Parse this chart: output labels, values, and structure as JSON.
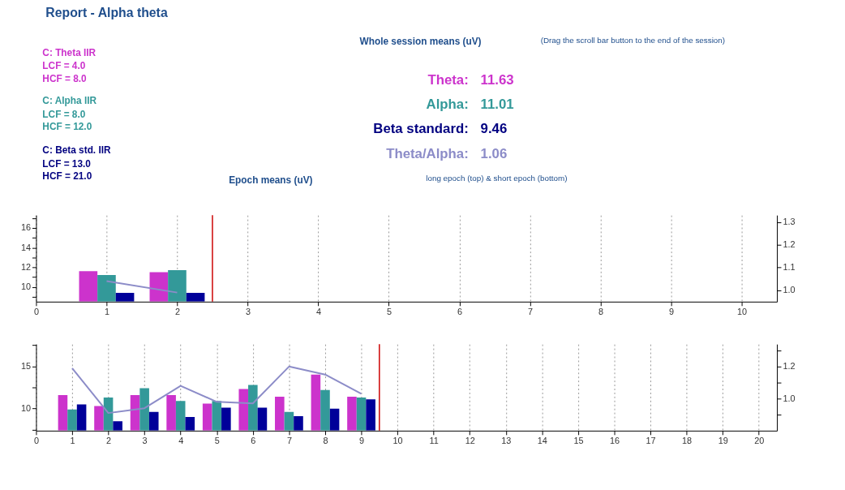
{
  "chart_data": [
    {
      "type": "other",
      "title": "Report - Alpha theta",
      "subtitle": "Whole session means (uV)",
      "annotations": [
        "C: Theta IIR",
        "LCF = 4.0",
        "HCF = 8.0",
        "C: Alpha IIR",
        "LCF = 8.0",
        "HCF = 12.0",
        "C: Beta std. IIR",
        "LCF = 13.0",
        "HCF = 21.0",
        "(Drag the scroll bar button to the end of the session)",
        "Theta:",
        "11.63",
        "Alpha:",
        "11.01",
        "Beta standard:",
        "9.46",
        "Theta/Alpha:",
        "1.06",
        "Epoch means (uV)",
        "long epoch (top) & short epoch (bottom)"
      ]
    },
    {
      "type": "bar",
      "x": [
        1,
        2
      ],
      "xlim": [
        0,
        10.5
      ],
      "xticks": [
        0,
        1,
        2,
        3,
        4,
        5,
        6,
        7,
        8,
        9,
        10
      ],
      "ylim": [
        8.5,
        17.3
      ],
      "yticks": [
        {
          "value": 9,
          "label": null
        },
        10,
        {
          "value": 11,
          "label": null
        },
        12,
        {
          "value": 13,
          "label": null
        },
        14,
        {
          "value": 15,
          "label": null
        },
        16,
        {
          "value": 17,
          "label": null
        }
      ],
      "y2lim": [
        0.95,
        1.33
      ],
      "y2ticks": [
        {
          "value": 1.0,
          "label": "1.0"
        },
        1.1,
        1.2,
        1.3
      ],
      "grid": "x",
      "series": [
        {
          "color": "#cc33cc",
          "values": [
            11.6,
            11.5
          ]
        },
        {
          "color": "#339999",
          "values": [
            11.2,
            11.7
          ]
        },
        {
          "color": "#000099",
          "values": [
            9.4,
            9.4
          ]
        },
        {
          "type": "line",
          "axis": "y2",
          "color": "#8c8cc8",
          "values": [
            1.04,
            0.99
          ]
        }
      ],
      "ref_lines": [
        {
          "axis": "x",
          "value": 2.5,
          "color": "#cc0000"
        }
      ]
    },
    {
      "type": "bar",
      "x": [
        1,
        2,
        3,
        4,
        5,
        6,
        7,
        8,
        9
      ],
      "xlim": [
        0,
        20.5
      ],
      "xticks": [
        0,
        1,
        2,
        3,
        4,
        5,
        6,
        7,
        8,
        9,
        10,
        11,
        12,
        13,
        14,
        15,
        16,
        17,
        18,
        19,
        20
      ],
      "ylim": [
        7.4,
        17.6
      ],
      "yticks": [
        {
          "value": 7.5,
          "label": null
        },
        10,
        {
          "value": 12.5,
          "label": null
        },
        15,
        {
          "value": 17.5,
          "label": null
        }
      ],
      "y2lim": [
        0.8,
        1.34
      ],
      "y2ticks": [
        {
          "value": 0.9,
          "label": null
        },
        {
          "value": 1.0,
          "label": "1.0"
        },
        {
          "value": 1.1,
          "label": null
        },
        1.2,
        {
          "value": 1.3,
          "label": null
        }
      ],
      "grid": "x",
      "series": [
        {
          "color": "#cc33cc",
          "values": [
            11.6,
            10.3,
            11.6,
            11.6,
            10.6,
            12.3,
            11.4,
            14.0,
            11.4
          ]
        },
        {
          "color": "#339999",
          "values": [
            9.9,
            11.3,
            12.4,
            10.9,
            10.9,
            12.8,
            9.6,
            12.2,
            11.3
          ]
        },
        {
          "color": "#000099",
          "values": [
            10.5,
            8.5,
            9.6,
            9.0,
            10.1,
            10.1,
            9.1,
            10.0,
            11.1
          ]
        },
        {
          "type": "line",
          "axis": "y2",
          "color": "#8c8cc8",
          "values": [
            1.19,
            0.91,
            0.94,
            1.08,
            0.98,
            0.97,
            1.2,
            1.15,
            1.03
          ]
        }
      ],
      "ref_lines": [
        {
          "axis": "x",
          "value": 9.5,
          "color": "#cc0000"
        }
      ]
    }
  ]
}
